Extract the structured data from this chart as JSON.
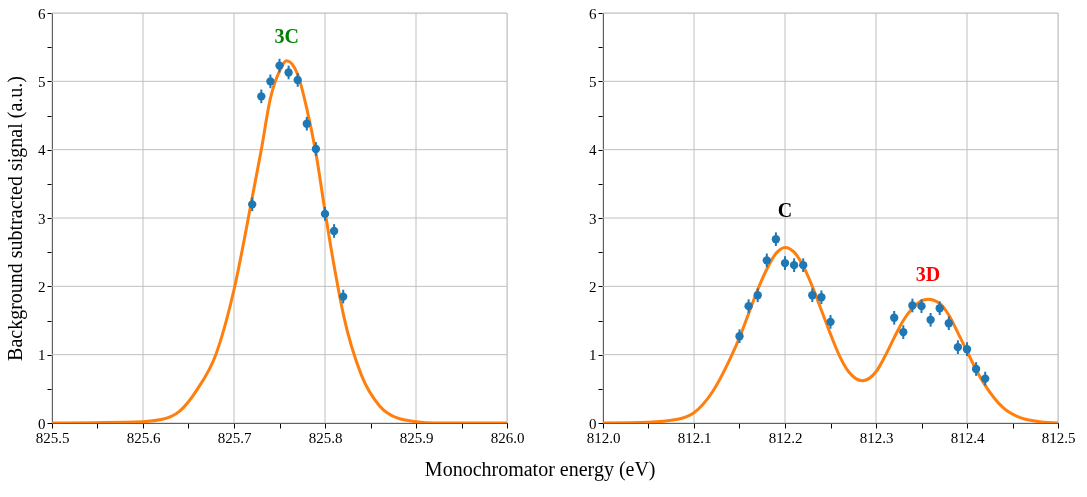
{
  "chart_data": [
    {
      "type": "scatter",
      "xlabel": "Monochromator energy (eV)",
      "ylabel": "Background subtracted signal (a.u.)",
      "xlim": [
        825.5,
        826.0
      ],
      "xticks": [
        825.5,
        {
          "value": 825.55,
          "label": null
        },
        825.6,
        {
          "value": 825.65,
          "label": null
        },
        825.7,
        {
          "value": 825.75,
          "label": null
        },
        825.8,
        {
          "value": 825.85,
          "label": null
        },
        825.9,
        {
          "value": 825.95,
          "label": null
        },
        {
          "value": 826.0,
          "label": "826.0"
        }
      ],
      "ylim": [
        0,
        6
      ],
      "yticks": [
        0,
        {
          "value": 0.5,
          "label": null
        },
        1,
        {
          "value": 1.5,
          "label": null
        },
        2,
        {
          "value": 2.5,
          "label": null
        },
        3,
        {
          "value": 3.5,
          "label": null
        },
        4,
        {
          "value": 4.5,
          "label": null
        },
        5,
        {
          "value": 5.5,
          "label": null
        },
        6
      ],
      "grid": true,
      "series": [
        {
          "type": "line",
          "color": "#ff7f0e",
          "x": [
            825.5,
            825.6,
            825.62,
            825.64,
            825.66,
            825.68,
            825.7,
            825.72,
            825.73,
            825.74,
            825.75,
            825.758,
            825.77,
            825.78,
            825.79,
            825.8,
            825.81,
            825.82,
            825.84,
            825.86,
            825.88,
            825.9,
            825.92,
            826.0
          ],
          "values": [
            0,
            0.02,
            0.05,
            0.17,
            0.5,
            1.0,
            1.95,
            3.3,
            4.0,
            4.75,
            5.15,
            5.3,
            5.1,
            4.6,
            3.95,
            3.1,
            2.3,
            1.6,
            0.7,
            0.25,
            0.07,
            0.02,
            0,
            0
          ]
        },
        {
          "color": "#1f77b4",
          "marker": "circle",
          "x": [
            825.72,
            825.73,
            825.74,
            825.75,
            825.76,
            825.77,
            825.78,
            825.79,
            825.8,
            825.81,
            825.82
          ],
          "values": [
            3.2,
            4.78,
            5.0,
            5.23,
            5.13,
            5.02,
            4.38,
            4.01,
            3.06,
            2.81,
            1.85
          ],
          "errors": [
            0.1,
            0.1,
            0.1,
            0.1,
            0.1,
            0.1,
            0.1,
            0.1,
            0.1,
            0.1,
            0.1
          ]
        }
      ],
      "annotations": [
        {
          "text": "3C",
          "x": 825.758,
          "y": 5.3
        }
      ]
    },
    {
      "type": "scatter",
      "xlim": [
        812.0,
        812.5
      ],
      "xticks": [
        {
          "value": 812.0,
          "label": "812.0"
        },
        {
          "value": 812.05,
          "label": null
        },
        812.1,
        {
          "value": 812.15,
          "label": null
        },
        812.2,
        {
          "value": 812.25,
          "label": null
        },
        812.3,
        {
          "value": 812.35,
          "label": null
        },
        812.4,
        {
          "value": 812.45,
          "label": null
        },
        812.5
      ],
      "ylim": [
        0,
        6
      ],
      "yticks": [
        0,
        {
          "value": 0.5,
          "label": null
        },
        1,
        {
          "value": 1.5,
          "label": null
        },
        2,
        {
          "value": 2.5,
          "label": null
        },
        3,
        {
          "value": 3.5,
          "label": null
        },
        4,
        {
          "value": 4.5,
          "label": null
        },
        5,
        {
          "value": 5.5,
          "label": null
        },
        6
      ],
      "grid": true,
      "series": [
        {
          "type": "line",
          "color": "#ff7f0e",
          "x": [
            812.0,
            812.05,
            812.08,
            812.1,
            812.12,
            812.14,
            812.15,
            812.16,
            812.17,
            812.18,
            812.19,
            812.2,
            812.21,
            812.22,
            812.23,
            812.24,
            812.25,
            812.26,
            812.27,
            812.285,
            812.3,
            812.31,
            812.32,
            812.33,
            812.34,
            812.357,
            812.37,
            812.38,
            812.39,
            812.4,
            812.41,
            812.42,
            812.44,
            812.46,
            812.48,
            812.5
          ],
          "values": [
            0,
            0.01,
            0.05,
            0.15,
            0.45,
            0.95,
            1.25,
            1.6,
            1.95,
            2.25,
            2.48,
            2.57,
            2.5,
            2.3,
            2.0,
            1.65,
            1.3,
            0.98,
            0.75,
            0.62,
            0.75,
            0.98,
            1.25,
            1.5,
            1.68,
            1.81,
            1.75,
            1.58,
            1.32,
            1.05,
            0.78,
            0.55,
            0.22,
            0.07,
            0.02,
            0
          ]
        },
        {
          "color": "#1f77b4",
          "marker": "circle",
          "x": [
            812.15,
            812.16,
            812.17,
            812.18,
            812.19,
            812.2,
            812.21,
            812.22,
            812.23,
            812.24,
            812.25,
            812.32,
            812.33,
            812.34,
            812.35,
            812.36,
            812.37,
            812.38,
            812.39,
            812.4,
            812.41,
            812.42
          ],
          "values": [
            1.27,
            1.71,
            1.87,
            2.38,
            2.69,
            2.34,
            2.31,
            2.31,
            1.87,
            1.84,
            1.48,
            1.54,
            1.33,
            1.72,
            1.71,
            1.51,
            1.68,
            1.46,
            1.11,
            1.08,
            0.79,
            0.65
          ],
          "errors": [
            0.1,
            0.1,
            0.1,
            0.1,
            0.1,
            0.1,
            0.1,
            0.1,
            0.1,
            0.1,
            0.1,
            0.1,
            0.1,
            0.1,
            0.1,
            0.1,
            0.1,
            0.1,
            0.1,
            0.1,
            0.1,
            0.1
          ]
        }
      ],
      "annotations": [
        {
          "text": "C",
          "x": 812.2,
          "y": 2.57
        },
        {
          "text": "3D",
          "x": 812.357,
          "y": 1.81
        }
      ]
    }
  ]
}
